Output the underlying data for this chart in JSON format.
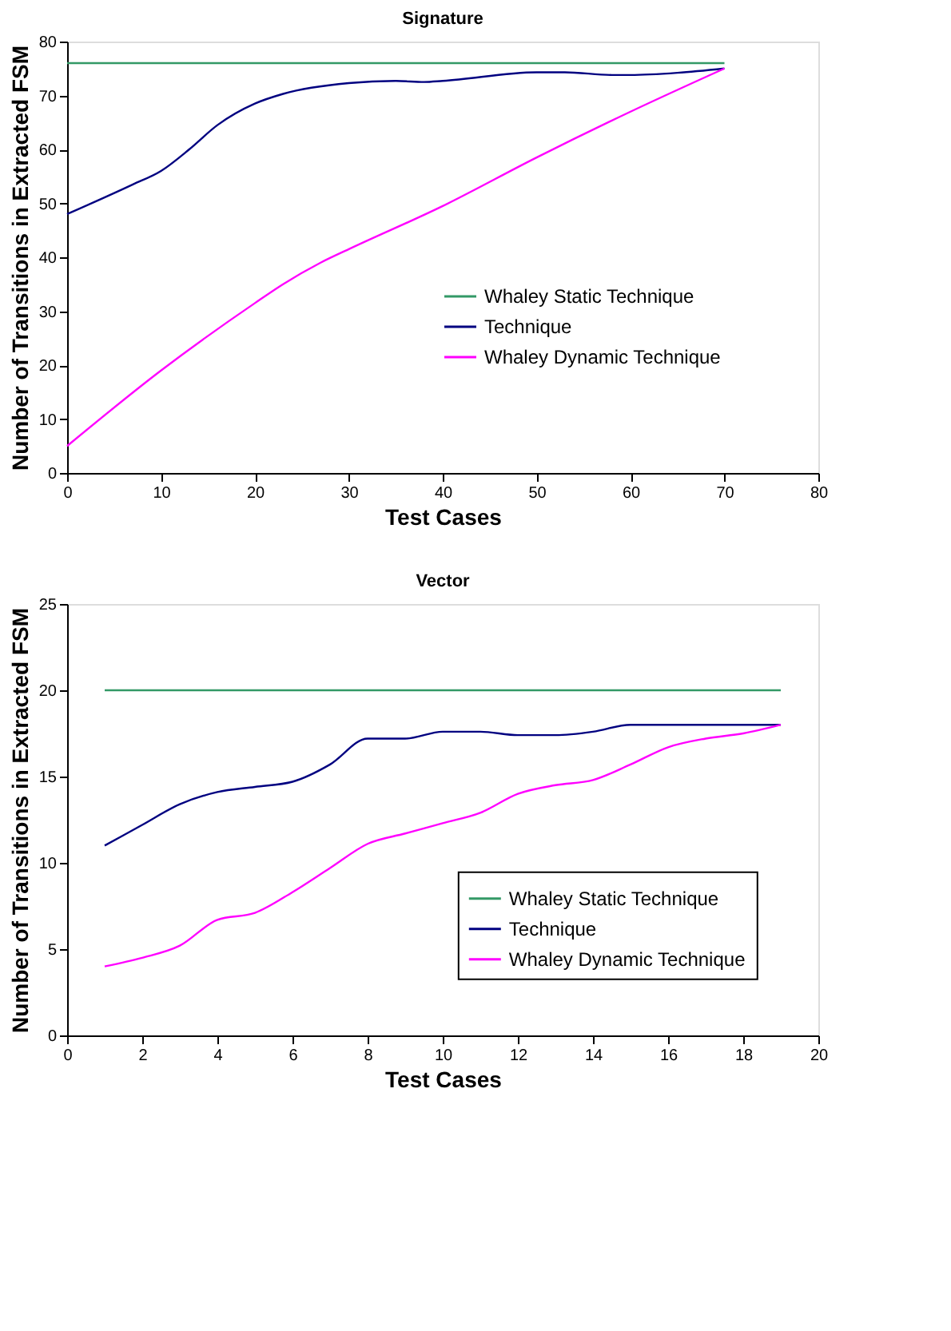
{
  "chart_data": [
    {
      "type": "line",
      "title": "Signature",
      "xlabel": "Test Cases",
      "ylabel": "Number of Transitions in Extracted FSM",
      "xlim": [
        0,
        80
      ],
      "xticks": [
        0,
        10,
        20,
        30,
        40,
        50,
        60,
        70,
        80
      ],
      "ylim": [
        0,
        80
      ],
      "yticks": [
        0,
        10,
        20,
        30,
        40,
        50,
        60,
        70,
        80
      ],
      "grid": false,
      "legend": "right",
      "marker": "none",
      "line_style": "solid",
      "series": [
        {
          "name": "Whaley Static Technique",
          "color": "#339966",
          "x": [
            0,
            70
          ],
          "values": [
            76,
            76
          ]
        },
        {
          "name": "Technique",
          "color": "#000080",
          "x": [
            0,
            7,
            10,
            13,
            16,
            20,
            23,
            30,
            35,
            38,
            40,
            50,
            53,
            58,
            60,
            65,
            70
          ],
          "values": [
            48,
            53.5,
            56,
            60,
            64.5,
            68.5,
            70.3,
            72.3,
            72.7,
            72.5,
            72.7,
            74.3,
            74.3,
            73.8,
            73.8,
            74.2,
            75
          ]
        },
        {
          "name": "Whaley Dynamic Technique",
          "color": "#ff00ff",
          "x": [
            0,
            10,
            20,
            23,
            27,
            30,
            40,
            50,
            60,
            70
          ],
          "values": [
            5,
            19,
            31.5,
            35,
            39,
            41.5,
            49.5,
            58.5,
            67,
            75
          ]
        }
      ]
    },
    {
      "type": "line",
      "title": "Vector",
      "xlabel": "Test Cases",
      "ylabel": "Number of Transitions in Extracted FSM",
      "xlim": [
        0,
        20
      ],
      "xticks": [
        0,
        2,
        4,
        6,
        8,
        10,
        12,
        14,
        16,
        18,
        20
      ],
      "ylim": [
        0,
        25
      ],
      "yticks": [
        0,
        5,
        10,
        15,
        20,
        25
      ],
      "grid": false,
      "legend": "bottom",
      "marker": "none",
      "line_style": "solid",
      "series": [
        {
          "name": "Whaley Static Technique",
          "color": "#339966",
          "x": [
            1,
            19
          ],
          "values": [
            20,
            20
          ]
        },
        {
          "name": "Technique",
          "color": "#000080",
          "x": [
            1,
            2,
            3,
            4,
            5,
            6,
            7,
            8,
            9,
            10,
            11,
            12,
            13,
            14,
            15,
            16,
            17,
            18,
            19
          ],
          "values": [
            11,
            12.2,
            13.4,
            14.1,
            14.4,
            14.7,
            15.7,
            17.2,
            17.2,
            17.6,
            17.6,
            17.4,
            17.4,
            17.6,
            18,
            18,
            18,
            18,
            18
          ]
        },
        {
          "name": "Whaley Dynamic Technique",
          "color": "#ff00ff",
          "x": [
            1,
            2,
            3,
            4,
            5,
            6,
            7,
            8,
            9,
            10,
            11,
            12,
            13,
            14,
            15,
            16,
            17,
            18,
            19
          ],
          "values": [
            4,
            4.5,
            5.2,
            6.7,
            7.1,
            8.3,
            9.7,
            11.1,
            11.7,
            12.3,
            12.9,
            14.0,
            14.5,
            14.8,
            15.7,
            16.7,
            17.2,
            17.5,
            18
          ]
        }
      ]
    }
  ]
}
